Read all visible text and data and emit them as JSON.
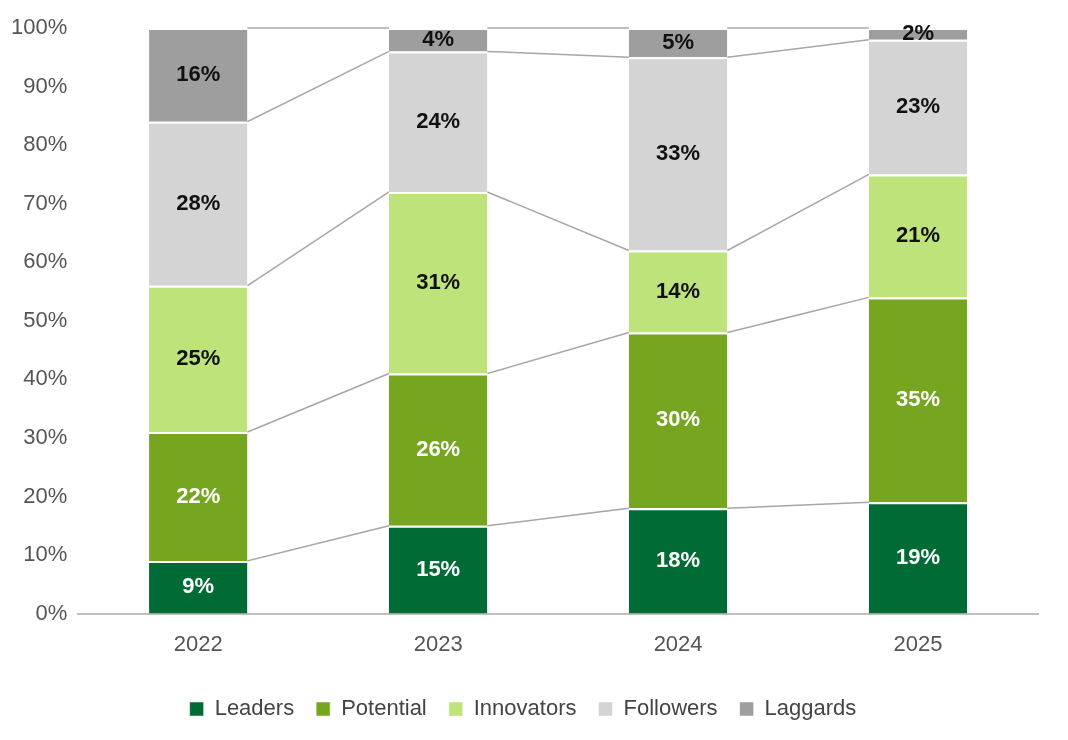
{
  "chart_data": {
    "type": "bar",
    "stacked": true,
    "categories": [
      "2022",
      "2023",
      "2024",
      "2025"
    ],
    "series": [
      {
        "name": "Leaders",
        "color": "#006b35",
        "values": [
          9,
          15,
          18,
          19
        ],
        "value_labels": [
          "9%",
          "15%",
          "18%",
          "19%"
        ]
      },
      {
        "name": "Potential",
        "color": "#76a520",
        "values": [
          22,
          26,
          30,
          35
        ],
        "value_labels": [
          "22%",
          "26%",
          "30%",
          "35%"
        ]
      },
      {
        "name": "Innovators",
        "color": "#bde37a",
        "values": [
          25,
          31,
          14,
          21
        ],
        "value_labels": [
          "25%",
          "31%",
          "14%",
          "21%"
        ]
      },
      {
        "name": "Followers",
        "color": "#d4d4d4",
        "values": [
          28,
          24,
          33,
          23
        ],
        "value_labels": [
          "28%",
          "24%",
          "33%",
          "23%"
        ]
      },
      {
        "name": "Laggards",
        "color": "#9e9e9e",
        "values": [
          16,
          4,
          5,
          2
        ],
        "value_labels": [
          "16%",
          "4%",
          "5%",
          "2%"
        ]
      }
    ],
    "ylim": [
      0,
      100
    ],
    "yticks": [
      {
        "value": 0,
        "label": "0%"
      },
      {
        "value": 10,
        "label": "10%"
      },
      {
        "value": 20,
        "label": "20%"
      },
      {
        "value": 30,
        "label": "30%"
      },
      {
        "value": 40,
        "label": "40%"
      },
      {
        "value": 50,
        "label": "50%"
      },
      {
        "value": 60,
        "label": "60%"
      },
      {
        "value": 70,
        "label": "70%"
      },
      {
        "value": 80,
        "label": "80%"
      },
      {
        "value": 90,
        "label": "90%"
      },
      {
        "value": 100,
        "label": "100%"
      }
    ],
    "grid": false,
    "legend": "bottom"
  }
}
